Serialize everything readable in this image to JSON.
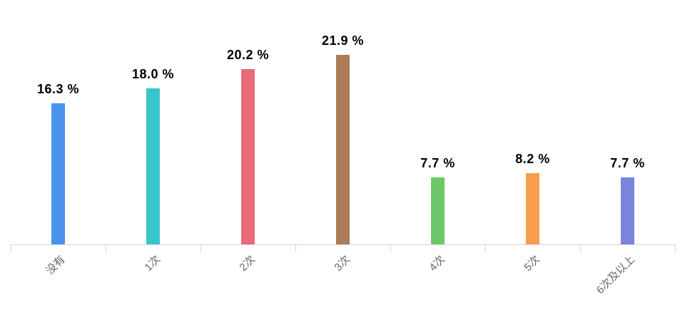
{
  "chart_data": {
    "type": "bar",
    "title": "",
    "xlabel": "",
    "ylabel": "",
    "categories": [
      "没有",
      "1次",
      "2次",
      "3次",
      "4次",
      "5次",
      "6次及以上"
    ],
    "values": [
      16.3,
      18.0,
      20.2,
      21.9,
      7.7,
      8.2,
      7.7
    ],
    "value_labels": [
      "16.3 %",
      "18.0 %",
      "20.2 %",
      "21.9 %",
      "7.7 %",
      "8.2 %",
      "7.7 %"
    ],
    "bar_colors": [
      "#4B92EC",
      "#38C6CC",
      "#E96A78",
      "#AC7D57",
      "#6FC867",
      "#F79D50",
      "#7A84DB"
    ],
    "ylim": [
      0,
      25
    ],
    "grid": false,
    "legend": false,
    "x_label_rotation_deg": -45,
    "colors": {
      "axis_line": "#ccd6eb",
      "tick": "#ccd6eb",
      "category_label": "#666666",
      "value_label": "#000000",
      "background": "#ffffff"
    }
  }
}
